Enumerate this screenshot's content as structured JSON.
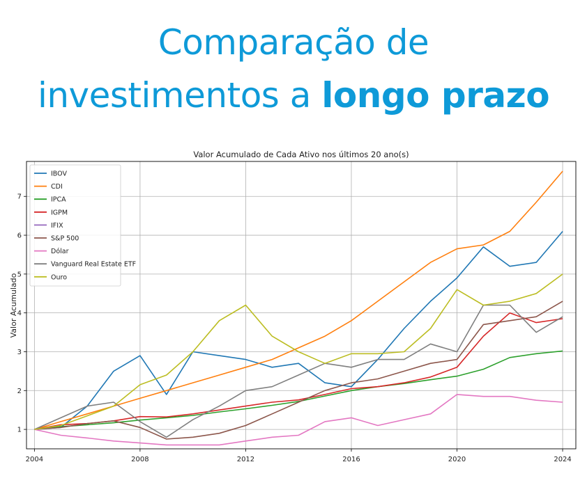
{
  "headline": {
    "line1": "Comparação de",
    "line2_regular": "investimentos a ",
    "line2_bold": "longo prazo",
    "color": "#0e9ad8"
  },
  "chart_data": {
    "type": "line",
    "title": "Valor Acumulado de Cada Ativo nos últimos 20 ano(s)",
    "xlabel": "",
    "ylabel": "Valor Acumulado",
    "xlim": [
      2003.7,
      2024.5
    ],
    "ylim": [
      0.5,
      7.9
    ],
    "x_ticks": [
      "2004",
      "2008",
      "2012",
      "2016",
      "2020",
      "2024"
    ],
    "y_ticks": [
      "1",
      "2",
      "3",
      "4",
      "5",
      "6",
      "7"
    ],
    "grid": true,
    "legend_position": "upper-left",
    "x": [
      2004,
      2005,
      2006,
      2007,
      2008,
      2009,
      2010,
      2011,
      2012,
      2013,
      2014,
      2015,
      2016,
      2017,
      2018,
      2019,
      2020,
      2021,
      2022,
      2023,
      2024
    ],
    "series": [
      {
        "name": "IBOV",
        "color": "#1f77b4",
        "values": [
          1.0,
          1.05,
          1.6,
          2.5,
          2.9,
          1.9,
          3.0,
          2.9,
          2.8,
          2.6,
          2.7,
          2.2,
          2.1,
          2.8,
          3.6,
          4.3,
          4.9,
          5.7,
          5.2,
          5.3,
          6.1
        ]
      },
      {
        "name": "CDI",
        "color": "#ff7f0e",
        "values": [
          1.0,
          1.2,
          1.4,
          1.6,
          1.8,
          2.0,
          2.2,
          2.4,
          2.6,
          2.8,
          3.1,
          3.4,
          3.8,
          4.3,
          4.8,
          5.3,
          5.65,
          5.75,
          6.1,
          6.85,
          7.65
        ]
      },
      {
        "name": "IPCA",
        "color": "#2ca02c",
        "values": [
          1.0,
          1.07,
          1.12,
          1.17,
          1.24,
          1.3,
          1.36,
          1.45,
          1.53,
          1.62,
          1.72,
          1.86,
          2.0,
          2.1,
          2.18,
          2.28,
          2.37,
          2.55,
          2.85,
          2.95,
          3.02
        ]
      },
      {
        "name": "IGPM",
        "color": "#d62728",
        "values": [
          1.0,
          1.12,
          1.15,
          1.22,
          1.33,
          1.32,
          1.4,
          1.5,
          1.6,
          1.7,
          1.76,
          1.9,
          2.05,
          2.1,
          2.2,
          2.35,
          2.6,
          3.4,
          4.0,
          3.75,
          3.85
        ]
      },
      {
        "name": "IFIX",
        "color": "#9467bd",
        "values": [
          null,
          null,
          null,
          null,
          null,
          null,
          null,
          null,
          null,
          null,
          null,
          null,
          null,
          null,
          null,
          null,
          null,
          null,
          null,
          null,
          null
        ]
      },
      {
        "name": "S&P 500",
        "color": "#8c564b",
        "values": [
          1.0,
          1.05,
          1.15,
          1.22,
          1.05,
          0.75,
          0.8,
          0.9,
          1.1,
          1.4,
          1.7,
          2.0,
          2.2,
          2.3,
          2.5,
          2.7,
          2.8,
          3.7,
          3.8,
          3.9,
          4.3
        ]
      },
      {
        "name": "Dólar",
        "color": "#e377c2",
        "values": [
          1.0,
          0.85,
          0.78,
          0.7,
          0.65,
          0.6,
          0.6,
          0.6,
          0.7,
          0.8,
          0.85,
          1.2,
          1.3,
          1.1,
          1.25,
          1.4,
          1.9,
          1.85,
          1.85,
          1.75,
          1.7
        ]
      },
      {
        "name": "Vanguard Real Estate ETF",
        "color": "#7f7f7f",
        "values": [
          1.0,
          1.3,
          1.6,
          1.7,
          1.2,
          0.8,
          1.25,
          1.6,
          2.0,
          2.1,
          2.4,
          2.7,
          2.6,
          2.8,
          2.8,
          3.2,
          3.0,
          4.2,
          4.2,
          3.5,
          3.9
        ]
      },
      {
        "name": "Ouro",
        "color": "#bcbd22",
        "values": [
          1.0,
          1.1,
          1.35,
          1.6,
          2.15,
          2.4,
          3.0,
          3.8,
          4.2,
          3.4,
          3.0,
          2.7,
          2.95,
          2.95,
          3.0,
          3.6,
          4.6,
          4.2,
          4.3,
          4.5,
          5.0
        ]
      }
    ]
  }
}
